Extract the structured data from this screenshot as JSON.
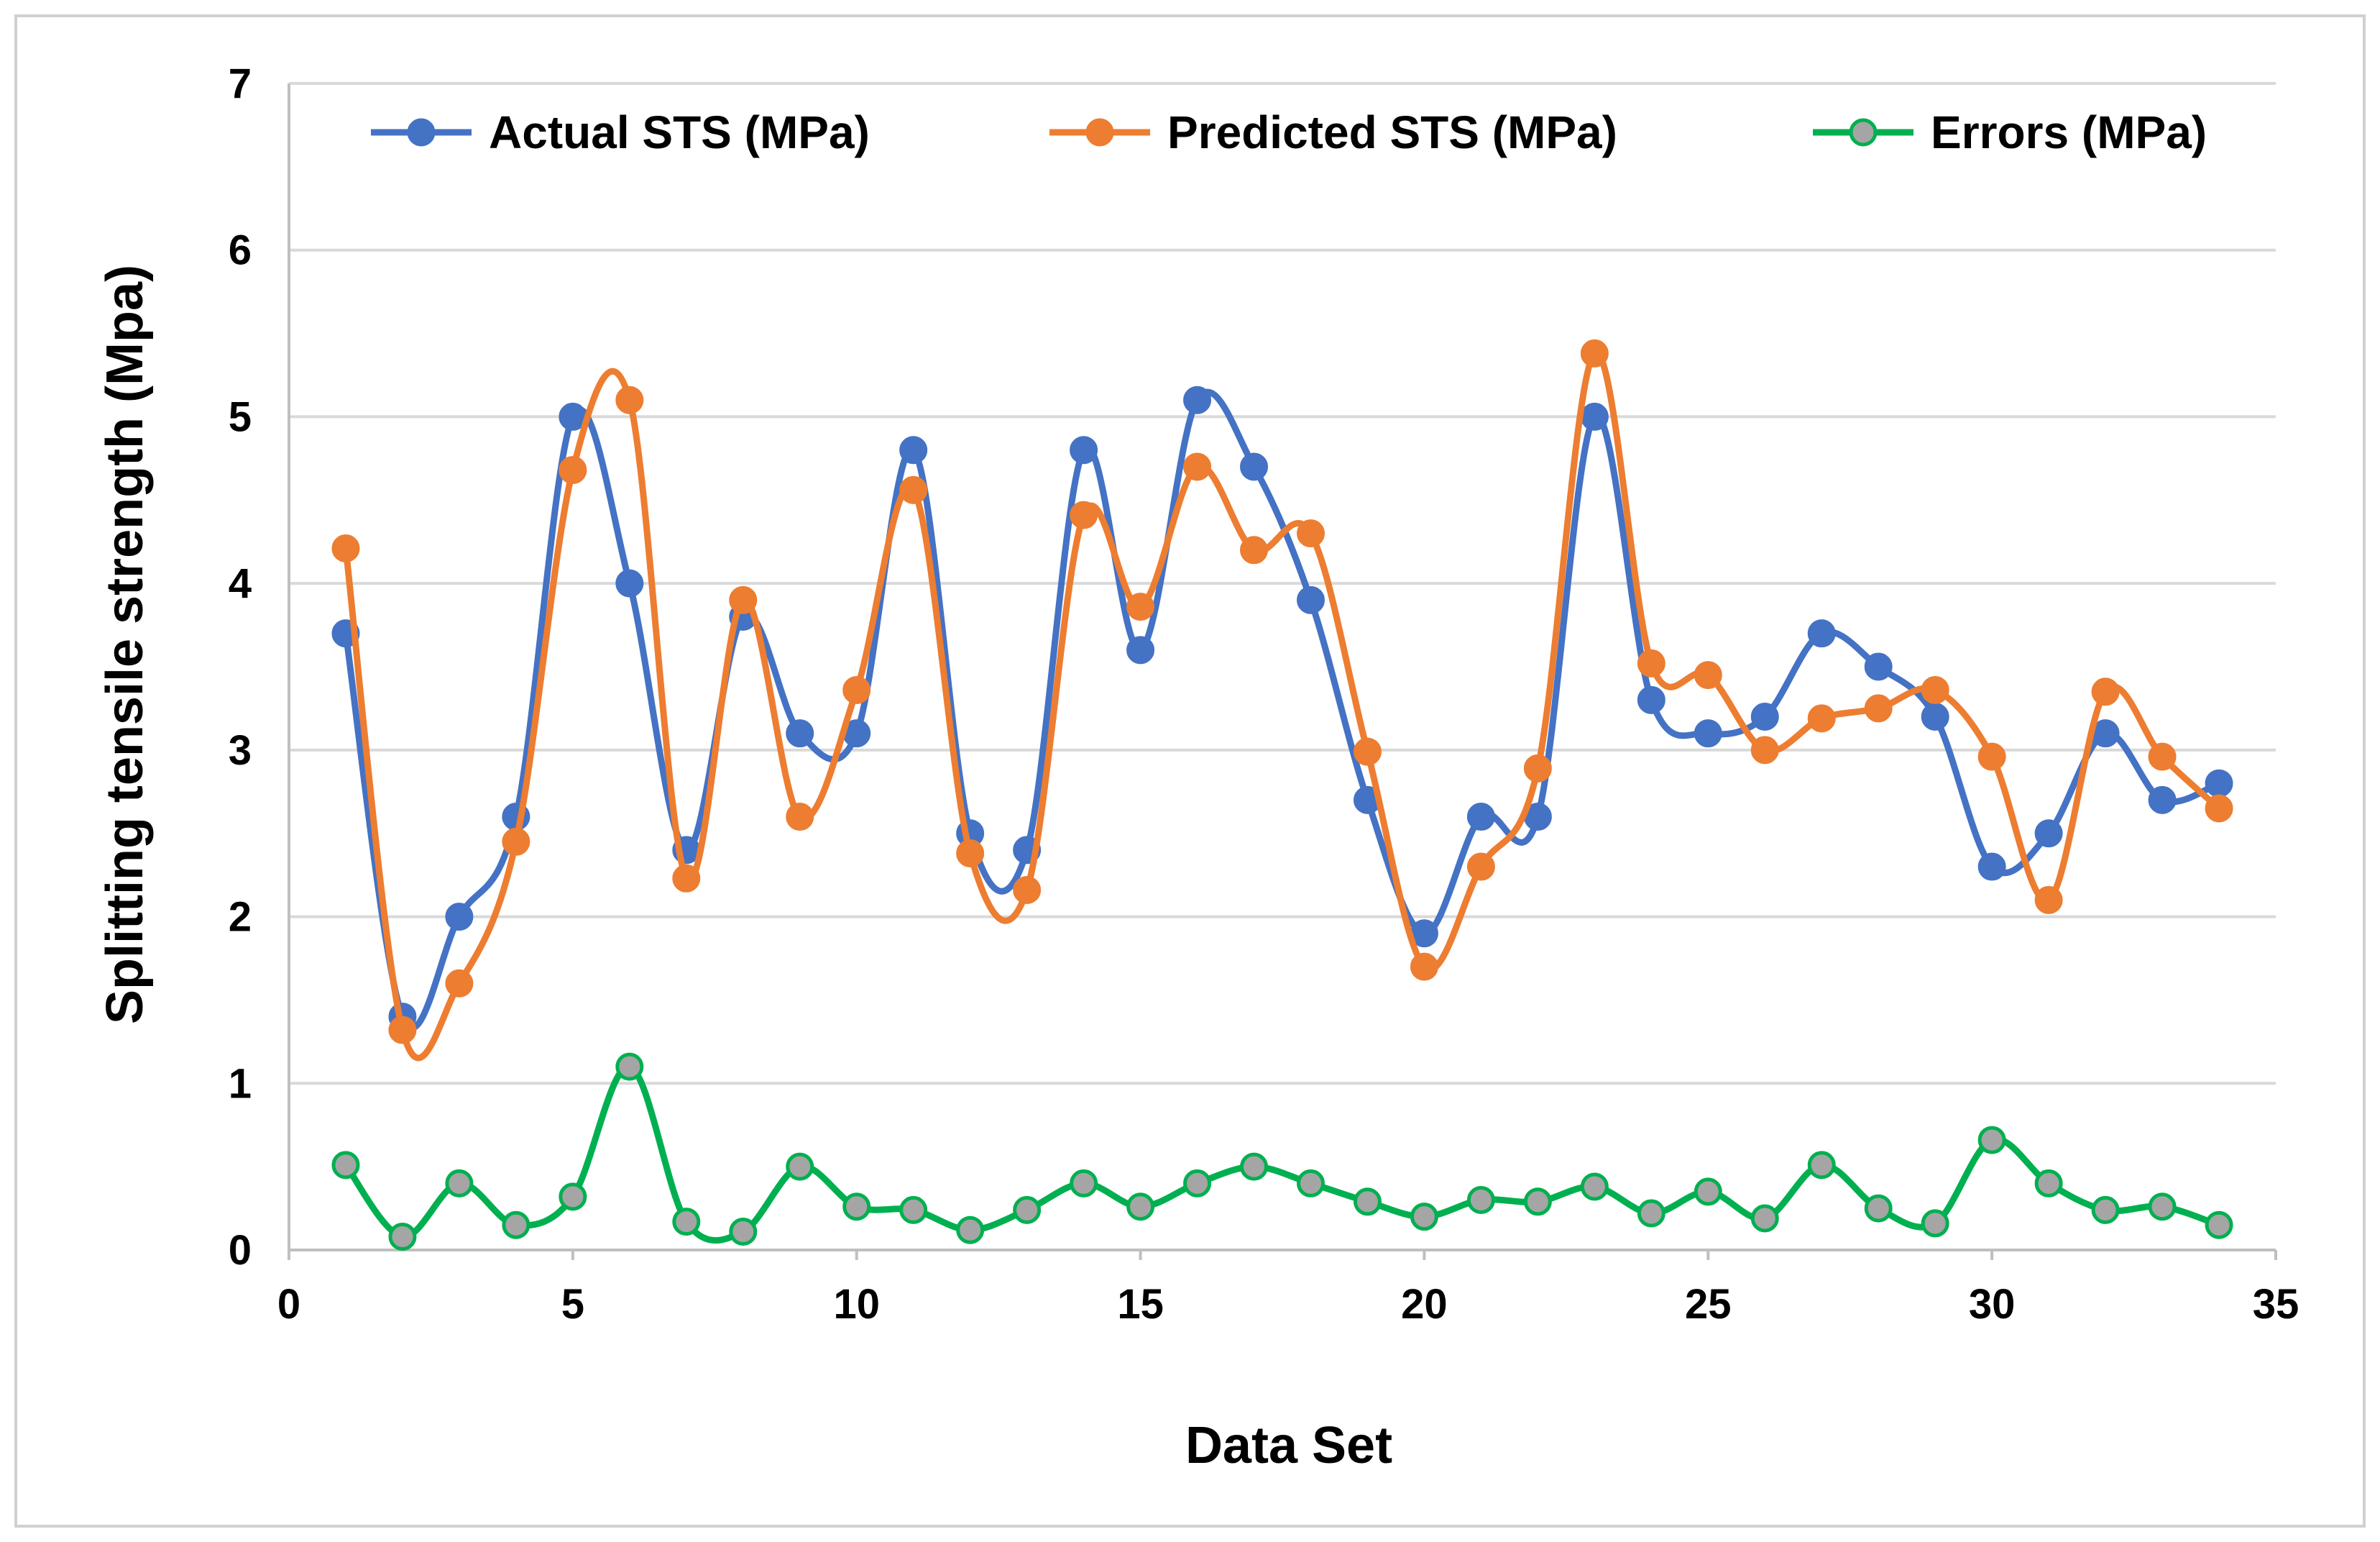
{
  "chart_data": {
    "type": "line",
    "title": "",
    "xlabel": "Data Set",
    "ylabel": "Splitting tensile strength (Mpa)",
    "xlim": [
      0,
      35
    ],
    "ylim": [
      0,
      7
    ],
    "xticks": [
      0,
      5,
      10,
      15,
      20,
      25,
      30,
      35
    ],
    "yticks": [
      0,
      1,
      2,
      3,
      4,
      5,
      6,
      7
    ],
    "grid": "horizontal",
    "legend_position": "top",
    "x": [
      1,
      2,
      3,
      4,
      5,
      6,
      7,
      8,
      9,
      10,
      11,
      12,
      13,
      14,
      15,
      16,
      17,
      18,
      19,
      20,
      21,
      22,
      23,
      24,
      25,
      26,
      27,
      28,
      29,
      30,
      31,
      32,
      33,
      34
    ],
    "series": [
      {
        "name": "Actual STS (MPa)",
        "color": "#4472C4",
        "marker_fill": "#4472C4",
        "values": [
          3.7,
          1.4,
          2.0,
          2.6,
          5.0,
          4.0,
          2.4,
          3.8,
          3.1,
          3.1,
          4.8,
          2.5,
          2.4,
          4.8,
          3.6,
          5.1,
          4.7,
          3.9,
          2.7,
          1.9,
          2.6,
          2.6,
          5.0,
          3.3,
          3.1,
          3.2,
          3.7,
          3.5,
          3.2,
          2.3,
          2.5,
          3.1,
          2.7,
          2.8
        ]
      },
      {
        "name": "Predicted STS (MPa)",
        "color": "#ED7D31",
        "marker_fill": "#ED7D31",
        "values": [
          4.21,
          1.32,
          1.6,
          2.45,
          4.68,
          5.1,
          2.23,
          3.9,
          2.6,
          3.36,
          4.56,
          2.38,
          2.16,
          4.41,
          3.86,
          4.7,
          4.2,
          4.3,
          2.99,
          1.7,
          2.3,
          2.89,
          5.38,
          3.52,
          3.45,
          3.0,
          3.19,
          3.25,
          3.36,
          2.96,
          2.1,
          3.35,
          2.96,
          2.65
        ]
      },
      {
        "name": "Errors (MPa)",
        "color": "#00B050",
        "marker_fill": "#A5A5A5",
        "values": [
          0.51,
          0.08,
          0.4,
          0.15,
          0.32,
          1.1,
          0.17,
          0.11,
          0.5,
          0.26,
          0.24,
          0.12,
          0.24,
          0.4,
          0.26,
          0.4,
          0.5,
          0.4,
          0.29,
          0.2,
          0.3,
          0.29,
          0.38,
          0.22,
          0.35,
          0.19,
          0.51,
          0.25,
          0.16,
          0.66,
          0.4,
          0.24,
          0.26,
          0.15
        ]
      }
    ]
  }
}
